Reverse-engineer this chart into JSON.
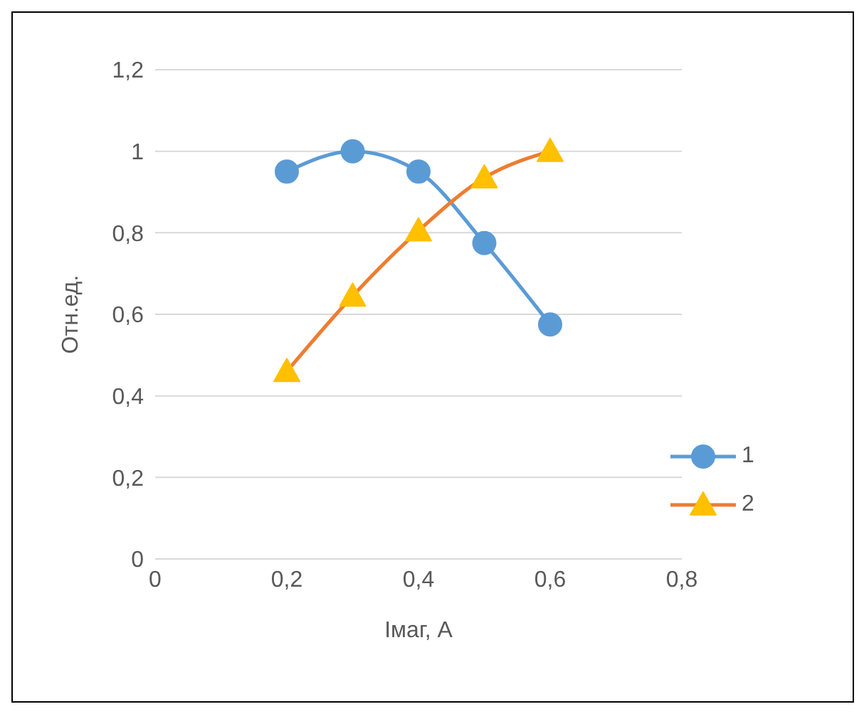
{
  "chart_data": {
    "type": "line",
    "xlabel": "Iмаг, А",
    "ylabel": "Отн.ед.",
    "xlim": [
      0,
      0.8
    ],
    "xticks": [
      {
        "value": 0,
        "label": "0"
      },
      {
        "value": 0.2,
        "label": "0,2"
      },
      {
        "value": 0.4,
        "label": "0,4"
      },
      {
        "value": 0.6,
        "label": "0,6"
      },
      {
        "value": 0.8,
        "label": "0,8"
      }
    ],
    "ylim": [
      0,
      1.2
    ],
    "yticks": [
      {
        "value": 0,
        "label": "0"
      },
      {
        "value": 0.2,
        "label": "0,2"
      },
      {
        "value": 0.4,
        "label": "0,4"
      },
      {
        "value": 0.6,
        "label": "0,6"
      },
      {
        "value": 0.8,
        "label": "0,8"
      },
      {
        "value": 1,
        "label": "1"
      },
      {
        "value": 1.2,
        "label": "1,2"
      }
    ],
    "grid": "y",
    "legend": "right",
    "series": [
      {
        "name": "1",
        "color": "#5b9bd5",
        "marker": "circle",
        "x": [
          0.2,
          0.3,
          0.4,
          0.5,
          0.6
        ],
        "values": [
          0.95,
          1.0,
          0.95,
          0.775,
          0.575
        ]
      },
      {
        "name": "2",
        "color": "#ed7d31",
        "colors": [
          "#ffc000",
          "#ffc000",
          "#ffc000",
          "#ffc000",
          "#ffc000"
        ],
        "marker": "triangle",
        "x": [
          0.2,
          0.3,
          0.4,
          0.5,
          0.6
        ],
        "values": [
          0.46,
          0.645,
          0.805,
          0.935,
          1.0
        ]
      }
    ]
  }
}
